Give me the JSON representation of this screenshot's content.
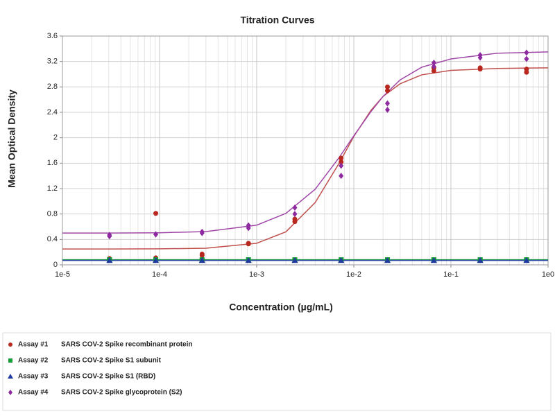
{
  "chart_data": {
    "type": "scatter",
    "title": "Titration Curves",
    "x_label": "Concentration (µg/mL)",
    "y_label": "Mean Optical Density",
    "x": [
      3.05e-05,
      3.05e-05,
      9.14e-05,
      9.14e-05,
      0.000274,
      0.000274,
      0.000823,
      0.000823,
      0.00247,
      0.00247,
      0.0074,
      0.0074,
      0.0222,
      0.0222,
      0.0667,
      0.0667,
      0.2,
      0.2,
      0.6,
      0.6
    ],
    "xlim": [
      1e-05,
      1
    ],
    "log_x": true,
    "xticks": [
      {
        "value": 1e-05,
        "label": "1e-5"
      },
      {
        "value": 0.0001,
        "label": "1e-4"
      },
      {
        "value": 0.001,
        "label": "1e-3"
      },
      {
        "value": 0.01,
        "label": "1e-2"
      },
      {
        "value": 0.1,
        "label": "1e-1"
      },
      {
        "value": 1,
        "label": "1e0"
      }
    ],
    "ylim": [
      0,
      3.6
    ],
    "yticks": [
      0,
      0.4,
      0.8,
      1.2,
      1.6,
      2,
      2.4,
      2.8,
      3.2,
      3.6
    ],
    "grid": true,
    "legend": "bottom",
    "series": [
      {
        "name": "Assay #1",
        "description": "SARS COV-2 Spike recombinant protein",
        "color": "#b8281e",
        "line_color": "#c0504d",
        "marker": "circle",
        "values": [
          0.1,
          0.09,
          0.81,
          0.11,
          0.17,
          0.15,
          0.33,
          0.34,
          0.68,
          0.72,
          1.68,
          1.62,
          2.8,
          2.74,
          3.05,
          3.1,
          3.1,
          3.08,
          3.08,
          3.03
        ],
        "fit": {
          "x": [
            1e-05,
            3e-05,
            0.0001,
            0.0003,
            0.001,
            0.002,
            0.004,
            0.007,
            0.01,
            0.015,
            0.02,
            0.03,
            0.05,
            0.1,
            0.3,
            1
          ],
          "values": [
            0.25,
            0.25,
            0.252,
            0.262,
            0.34,
            0.52,
            0.98,
            1.59,
            2.02,
            2.43,
            2.65,
            2.85,
            2.99,
            3.06,
            3.09,
            3.1
          ]
        }
      },
      {
        "name": "Assay #2",
        "description": "SARS COV-2 Spike S1 subunit",
        "color": "#1a9a38",
        "line_color": "#1a9a38",
        "marker": "square",
        "values": [
          0.08,
          0.08,
          0.08,
          0.08,
          0.08,
          0.08,
          0.08,
          0.08,
          0.08,
          0.08,
          0.08,
          0.08,
          0.08,
          0.08,
          0.08,
          0.08,
          0.08,
          0.08,
          0.08,
          0.08
        ],
        "fit": {
          "x": [
            1e-05,
            1
          ],
          "values": [
            0.08,
            0.08
          ]
        }
      },
      {
        "name": "Assay #3",
        "description": "SARS COV-2 Spike S1 (RBD)",
        "color": "#1f3c9e",
        "line_color": "#2a48a8",
        "marker": "triangle",
        "values": [
          0.07,
          0.07,
          0.07,
          0.07,
          0.07,
          0.07,
          0.07,
          0.07,
          0.07,
          0.07,
          0.07,
          0.07,
          0.07,
          0.07,
          0.07,
          0.07,
          0.07,
          0.07,
          0.07,
          0.07
        ],
        "fit": {
          "x": [
            1e-05,
            1
          ],
          "values": [
            0.07,
            0.07
          ]
        }
      },
      {
        "name": "Assay #4",
        "description": "SARS COV-2 Spike glycoprotein (S2)",
        "color": "#8e2aa0",
        "line_color": "#a048a8",
        "marker": "diamond",
        "values": [
          0.47,
          0.45,
          0.48,
          0.48,
          0.52,
          0.5,
          0.62,
          0.58,
          0.9,
          0.8,
          1.56,
          1.4,
          2.54,
          2.44,
          3.18,
          3.12,
          3.3,
          3.26,
          3.34,
          3.24
        ],
        "fit": {
          "x": [
            1e-05,
            3e-05,
            0.0001,
            0.0003,
            0.001,
            0.002,
            0.004,
            0.007,
            0.01,
            0.015,
            0.02,
            0.03,
            0.05,
            0.1,
            0.3,
            1
          ],
          "values": [
            0.5,
            0.5,
            0.505,
            0.524,
            0.625,
            0.81,
            1.19,
            1.68,
            2.03,
            2.41,
            2.65,
            2.91,
            3.11,
            3.24,
            3.33,
            3.35
          ]
        }
      }
    ]
  }
}
